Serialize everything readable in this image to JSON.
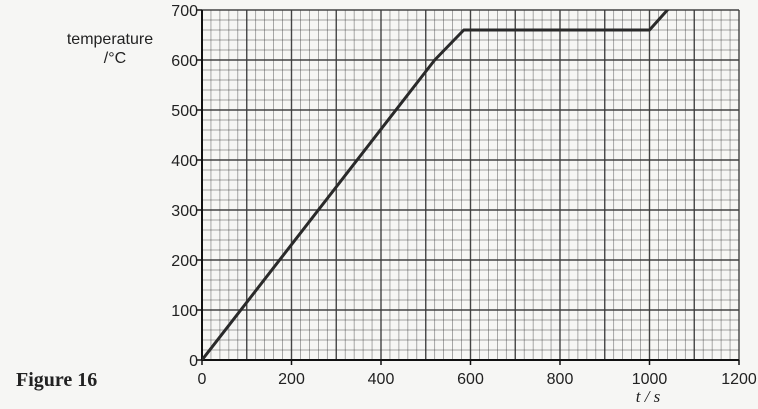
{
  "figure_label": "Figure 16",
  "chart_data": {
    "type": "line",
    "title": "",
    "xlabel": "t / s",
    "ylabel_line1": "temperature",
    "ylabel_line2": "/°C",
    "xlim": [
      0,
      1200
    ],
    "ylim": [
      0,
      700
    ],
    "x_ticks": [
      0,
      200,
      400,
      600,
      800,
      1000,
      1200
    ],
    "y_ticks": [
      0,
      100,
      200,
      300,
      400,
      500,
      600,
      700
    ],
    "grid": true,
    "legend": "none",
    "line_color": "#2a2a2a",
    "grid_color": "#3a3a3a",
    "series": [
      {
        "x": [
          0,
          520,
          585,
          1000,
          1040
        ],
        "y": [
          0,
          600,
          660,
          660,
          700
        ]
      }
    ]
  }
}
